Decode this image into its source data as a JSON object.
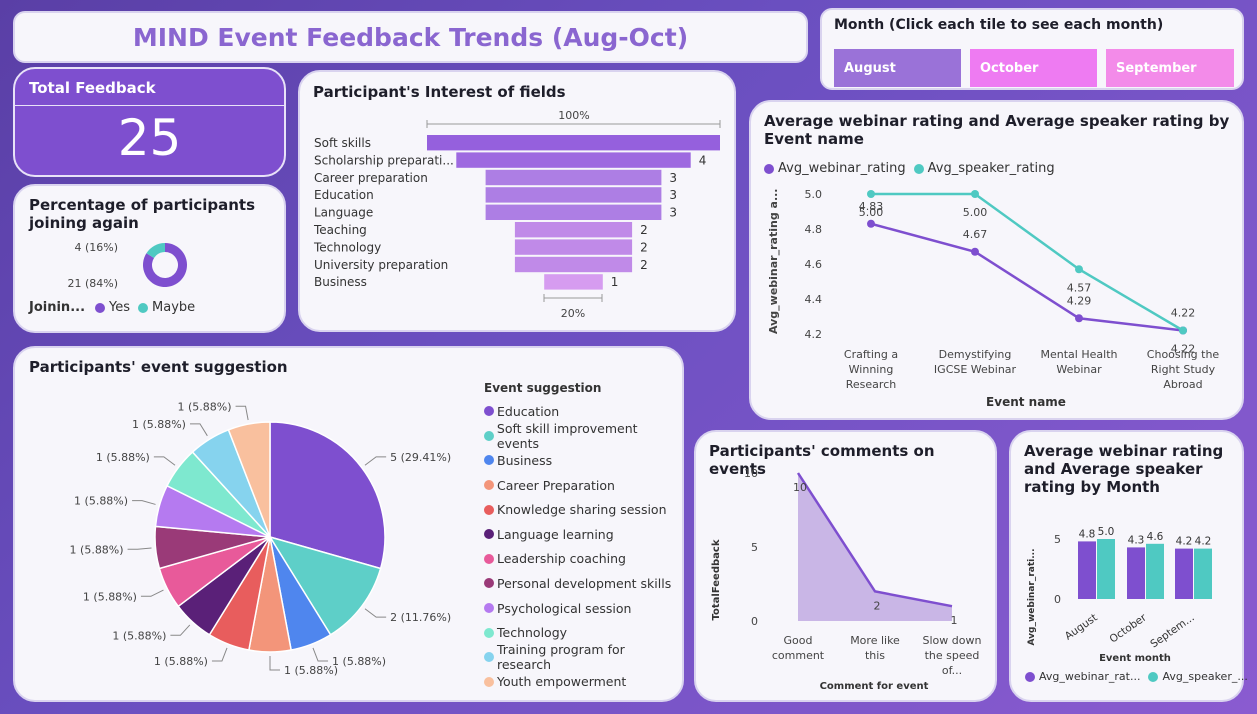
{
  "title": "MIND Event Feedback Trends (Aug-Oct)",
  "month_slicer": {
    "title": "Month (Click each tile to see each month)",
    "tiles": [
      {
        "label": "August",
        "color": "#9a72d8"
      },
      {
        "label": "October",
        "color": "#ee7bf2"
      },
      {
        "label": "September",
        "color": "#f38be9"
      }
    ]
  },
  "total_feedback": {
    "label": "Total Feedback",
    "value": "25"
  },
  "joining_again": {
    "title": "Percentage of participants joining again",
    "legend_title": "Joinin...",
    "legend": [
      {
        "name": "Yes",
        "color": "#7e4fcf"
      },
      {
        "name": "Maybe",
        "color": "#4fc9c2"
      }
    ],
    "chart_data": {
      "type": "pie",
      "labels": [
        "Yes",
        "Maybe"
      ],
      "values": [
        21,
        4
      ],
      "data_labels": [
        "21 (84%)",
        "4 (16%)"
      ]
    }
  },
  "interest": {
    "title": "Participant's Interest of fields",
    "top_label": "100%",
    "bottom_label": "20%",
    "chart_data": {
      "type": "bar",
      "categories": [
        "Soft skills",
        "Scholarship preparati...",
        "Career preparation",
        "Education",
        "Language",
        "Teaching",
        "Technology",
        "University preparation",
        "Business"
      ],
      "values": [
        5,
        4,
        3,
        3,
        3,
        2,
        2,
        2,
        1
      ],
      "data_labels": [
        "",
        "4",
        "3",
        "3",
        "3",
        "2",
        "2",
        "2",
        "1"
      ]
    }
  },
  "event_rating": {
    "title": "Average webinar rating and Average speaker rating by Event name",
    "xlabel": "Event name",
    "ylabel": "Avg_webinar_rating a...",
    "legend": [
      {
        "name": "Avg_webinar_rating",
        "color": "#7e4fcf"
      },
      {
        "name": "Avg_speaker_rating",
        "color": "#4fc9c2"
      }
    ],
    "chart_data": {
      "type": "line",
      "categories": [
        "Crafting a Winning Research Wor...",
        "Demystifying IGCSE Webinar",
        "Mental Health Webinar",
        "Choosing the Right Study Abroad Desti..."
      ],
      "series": [
        {
          "name": "Avg_webinar_rating",
          "values": [
            4.83,
            4.67,
            4.29,
            4.22
          ],
          "labels": [
            "4.83",
            "4.67",
            "4.29",
            "4.22"
          ]
        },
        {
          "name": "Avg_speaker_rating",
          "values": [
            5.0,
            5.0,
            4.57,
            4.22
          ],
          "labels": [
            "5.00",
            "5.00",
            "4.57",
            "4.22"
          ]
        }
      ],
      "yticks": [
        "5.0",
        "4.8",
        "4.6",
        "4.4",
        "4.2"
      ],
      "ylim": [
        4.2,
        5.0
      ]
    }
  },
  "suggestion": {
    "title": "Participants' event suggestion",
    "legend_title": "Event suggestion",
    "chart_data": {
      "type": "pie",
      "labels": [
        "Education",
        "Soft skill improvement events",
        "Business",
        "Career Preparation",
        "Knowledge sharing session",
        "Language learning",
        "Leadership coaching",
        "Personal development skills",
        "Psychological session",
        "Technology",
        "Training program for research",
        "Youth empowerment"
      ],
      "values": [
        5,
        2,
        1,
        1,
        1,
        1,
        1,
        1,
        1,
        1,
        1,
        1
      ],
      "colors": [
        "#7e4fcf",
        "#5ecfc8",
        "#4f86ee",
        "#f3957a",
        "#e85d5d",
        "#5a2078",
        "#e85a9a",
        "#9a3a78",
        "#b57af0",
        "#7ee8cf",
        "#86d3ee",
        "#f9c09e"
      ],
      "data_labels": [
        "5 (29.41%)",
        "2 (11.76%)",
        "1 (5.88%)",
        "1 (5.88%)",
        "1 (5.88%)",
        "1 (5.88%)",
        "1 (5.88%)",
        "1 (5.88%)",
        "1 (5.88%)",
        "1 (5.88%)",
        "1 (5.88%)",
        "1 (5.88%)"
      ]
    }
  },
  "comments": {
    "title": "Participants' comments on events",
    "xlabel": "Comment for event",
    "ylabel": "TotalFeedback",
    "chart_data": {
      "type": "area",
      "categories": [
        "Good comment",
        "More like this",
        "Slow down the speed of..."
      ],
      "values": [
        10,
        2,
        1
      ],
      "yticks": [
        "10",
        "5",
        "0"
      ],
      "ylim": [
        0,
        10
      ]
    }
  },
  "month_rating": {
    "title": "Average webinar rating and Average speaker rating by Month",
    "xlabel": "Event month",
    "ylabel": "Avg_webinar_rati...",
    "legend": [
      {
        "name": "Avg_webinar_rat...",
        "color": "#7e4fcf"
      },
      {
        "name": "Avg_speaker_...",
        "color": "#4fc9c2"
      }
    ],
    "chart_data": {
      "type": "bar",
      "categories": [
        "August",
        "October",
        "Septem..."
      ],
      "series": [
        {
          "name": "Avg_webinar_rating",
          "values": [
            4.8,
            4.3,
            4.2
          ],
          "labels": [
            "4.8",
            "4.3",
            "4.2"
          ]
        },
        {
          "name": "Avg_speaker_rating",
          "values": [
            5.0,
            4.6,
            4.2
          ],
          "labels": [
            "5.0",
            "4.6",
            "4.2"
          ]
        }
      ],
      "yticks": [
        "5",
        "0"
      ],
      "ylim": [
        0,
        6
      ]
    }
  }
}
